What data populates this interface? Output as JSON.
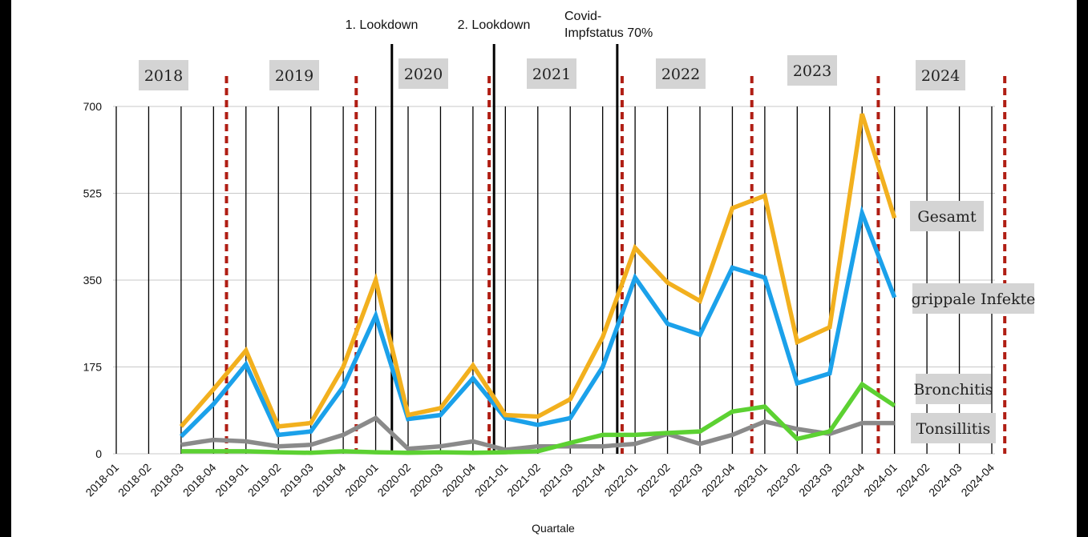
{
  "chart_data": {
    "type": "line",
    "xlabel": "Quartale",
    "ylabel": "",
    "ylim": [
      0,
      700
    ],
    "yticks": [
      "0",
      "175",
      "350",
      "525",
      "700"
    ],
    "ytick_values": [
      0,
      175,
      350,
      525,
      700
    ],
    "x": [
      "2018-01",
      "2018-02",
      "2018-03",
      "2018-04",
      "2019-01",
      "2019-02",
      "2019-03",
      "2019-04",
      "2020-01",
      "2020-02",
      "2020-03",
      "2020-04",
      "2021-01",
      "2021-02",
      "2021-03",
      "2021-04",
      "2022-01",
      "2022-02",
      "2022-03",
      "2022-04",
      "2023-01",
      "2023-02",
      "2023-03",
      "2023-04",
      "2024-01",
      "2024-02",
      "2024-03",
      "2024-04"
    ],
    "series": [
      {
        "name": "Gesamt",
        "color": "#f2b01e",
        "values": [
          null,
          null,
          55,
          130,
          208,
          55,
          62,
          175,
          350,
          78,
          92,
          178,
          78,
          75,
          110,
          235,
          415,
          345,
          308,
          495,
          520,
          225,
          255,
          685,
          475,
          null,
          null,
          null
        ]
      },
      {
        "name": "grippale Infekte",
        "color": "#1ba1ea",
        "values": [
          null,
          null,
          35,
          100,
          180,
          38,
          45,
          135,
          278,
          70,
          78,
          152,
          72,
          58,
          72,
          175,
          355,
          262,
          240,
          375,
          355,
          142,
          162,
          485,
          315,
          null,
          null,
          null
        ]
      },
      {
        "name": "Bronchitis",
        "color": "#5cd132",
        "values": [
          null,
          null,
          5,
          5,
          5,
          3,
          2,
          5,
          3,
          2,
          3,
          2,
          3,
          5,
          22,
          38,
          38,
          42,
          45,
          85,
          95,
          30,
          45,
          140,
          97,
          null,
          null,
          null
        ]
      },
      {
        "name": "Tonsillitis",
        "color": "#8a8a8a",
        "values": [
          null,
          null,
          18,
          28,
          25,
          15,
          18,
          38,
          72,
          10,
          15,
          25,
          8,
          15,
          15,
          15,
          20,
          40,
          20,
          38,
          65,
          50,
          40,
          62,
          62,
          null,
          null,
          null
        ]
      }
    ],
    "years": [
      "2018",
      "2019",
      "2020",
      "2021",
      "2022",
      "2023",
      "2024"
    ],
    "events": [
      {
        "label": "1. Lookdown"
      },
      {
        "label": "2. Lookdown"
      },
      {
        "label_lines": [
          "Covid-",
          "Impfstatus 70%"
        ]
      }
    ]
  },
  "colors": {
    "year_divider": "#b01e14",
    "event_line": "#000000",
    "label_box": "#d4d4d4"
  }
}
